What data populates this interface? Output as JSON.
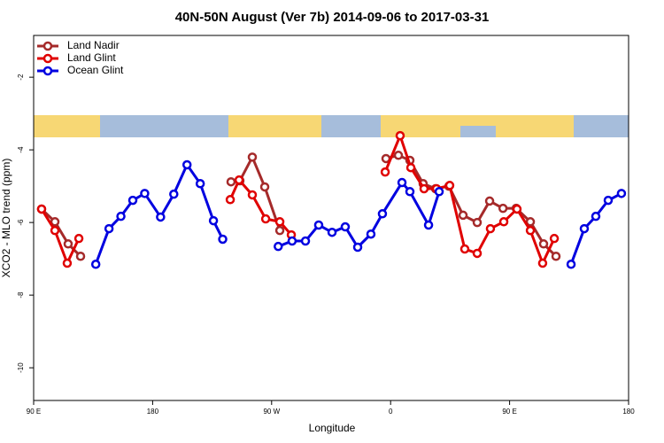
{
  "chart_data": {
    "type": "line",
    "title": "40N-50N August (Ver 7b)   2014-09-06 to 2017-03-31",
    "x_label": "Longitude",
    "y_label": "XCO2 - MLO trend (ppm)",
    "xlim": [
      90,
      540
    ],
    "ylim": [
      -10.9,
      -0.85
    ],
    "xticks": [
      {
        "value": 90,
        "label": "90 E"
      },
      180,
      {
        "value": 270,
        "label": "90 W"
      },
      {
        "value": 360,
        "label": "0"
      },
      {
        "value": 450,
        "label": "90 E"
      },
      {
        "value": 540,
        "label": "180"
      }
    ],
    "yticks": [
      -10,
      -8,
      -6,
      -4,
      -2
    ],
    "legend": "top-left",
    "series": [
      {
        "name": "Land Nadir",
        "color": "#a52a2a",
        "x": [
          96,
          106.1,
          116.1,
          125.5,
          null,
          239.3,
          246,
          255.4,
          264.8,
          276.2,
          null,
          356.5,
          365.9,
          374.6,
          384.6,
          394,
          404.1,
          414.8,
          425.5,
          434.9,
          445,
          455,
          465.7,
          475.7,
          485.1
        ],
        "values": [
          -5.63,
          -5.98,
          -6.59,
          -6.93,
          null,
          -4.88,
          -4.85,
          -4.2,
          -5.02,
          -6.22,
          null,
          -4.24,
          -4.15,
          -4.29,
          -4.93,
          -5.07,
          -5.0,
          -5.8,
          -6.0,
          -5.41,
          -5.61,
          -5.61,
          -5.98,
          -6.59,
          -6.93
        ]
      },
      {
        "name": "Land Glint",
        "color": "#e00000",
        "x": [
          96,
          106.1,
          115.4,
          124.2,
          null,
          238.7,
          245.4,
          255.4,
          265.5,
          276.2,
          284.9,
          null,
          355.9,
          367.2,
          375.3,
          385.3,
          394.7,
          404.7,
          416.1,
          425.5,
          435.5,
          445.6,
          455.6,
          465.7,
          475,
          483.8
        ],
        "values": [
          -5.63,
          -6.22,
          -7.12,
          -6.44,
          null,
          -5.37,
          -4.83,
          -5.24,
          -5.9,
          -5.98,
          -6.34,
          null,
          -4.61,
          -3.61,
          -4.49,
          -5.07,
          -5.07,
          -4.98,
          -6.73,
          -6.85,
          -6.17,
          -5.98,
          -5.63,
          -6.22,
          -7.12,
          -6.44
        ]
      },
      {
        "name": "Ocean Glint",
        "color": "#0000e0",
        "x": [
          137,
          147,
          156,
          165,
          174,
          186,
          196,
          206,
          216,
          226,
          233,
          null,
          275,
          285.5,
          295.6,
          305.6,
          315.7,
          325.7,
          335.1,
          345.1,
          353.8,
          368.6,
          374.6,
          388.7,
          396.7,
          null,
          496.5,
          506.5,
          515.2,
          524.6,
          534.6
        ],
        "values": [
          -7.15,
          -6.17,
          -5.83,
          -5.39,
          -5.2,
          -5.85,
          -5.22,
          -4.41,
          -4.93,
          -5.95,
          -6.46,
          null,
          -6.66,
          -6.51,
          -6.51,
          -6.07,
          -6.27,
          -6.12,
          -6.68,
          -6.32,
          -5.76,
          -4.9,
          -5.15,
          -6.07,
          -5.15,
          null,
          -7.15,
          -6.17,
          -5.83,
          -5.39,
          -5.2
        ]
      }
    ]
  }
}
